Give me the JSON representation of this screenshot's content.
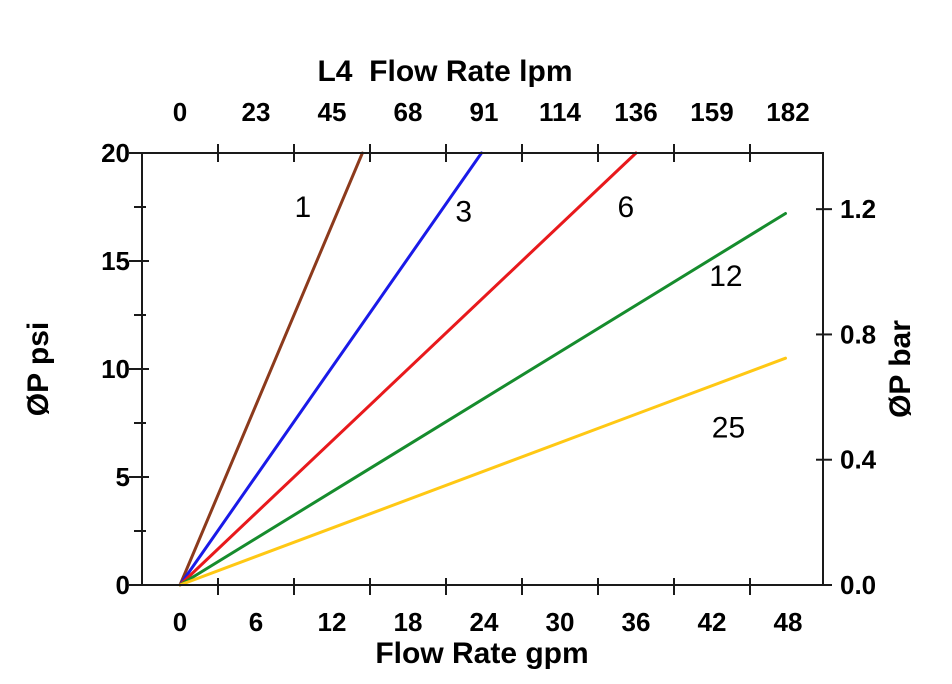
{
  "chart_data": {
    "type": "line",
    "title": "L4  Flow Rate lpm",
    "x_axis": {
      "label": "Flow Rate gpm",
      "unit": "gpm",
      "tick_values": [
        0,
        6,
        12,
        18,
        24,
        30,
        36,
        42,
        48
      ],
      "tick_mark_positions": [
        3,
        9,
        15,
        21,
        27,
        33,
        39,
        45
      ],
      "range": [
        0,
        48
      ]
    },
    "x2_axis": {
      "label": "L4  Flow Rate lpm",
      "unit": "lpm",
      "tick_labels": [
        "0",
        "23",
        "45",
        "68",
        "91",
        "114",
        "136",
        "159",
        "182"
      ],
      "tick_mark_positions": [
        3,
        9,
        15,
        21,
        27,
        33,
        39,
        45
      ]
    },
    "y_axis": {
      "label": "ØP psi",
      "unit": "psi",
      "tick_values": [
        0,
        5,
        10,
        15,
        20
      ],
      "minor_tick_values": [
        2.5,
        7.5,
        12.5,
        17.5
      ],
      "range": [
        0,
        20
      ]
    },
    "y2_axis": {
      "label": "ØP bar",
      "unit": "bar",
      "tick_values": [
        0.0,
        0.4,
        0.8,
        1.2
      ],
      "tick_labels": [
        "0.0",
        "0.4",
        "0.8",
        "1.2"
      ],
      "psi_per_bar": 14.5
    },
    "series": [
      {
        "name": "1",
        "color": "#8C3A1C",
        "points": [
          [
            0,
            0
          ],
          [
            14.4,
            20.0
          ]
        ],
        "label_at": [
          9.7,
          17.5
        ]
      },
      {
        "name": "3",
        "color": "#1A1AE8",
        "points": [
          [
            0,
            0
          ],
          [
            23.8,
            20.0
          ]
        ],
        "label_at": [
          22.4,
          17.3
        ]
      },
      {
        "name": "6",
        "color": "#E8191C",
        "points": [
          [
            0,
            0
          ],
          [
            36.0,
            20.0
          ]
        ],
        "label_at": [
          35.2,
          17.5
        ]
      },
      {
        "name": "12",
        "color": "#168C2D",
        "points": [
          [
            0,
            0
          ],
          [
            47.8,
            17.2
          ]
        ],
        "label_at": [
          43.1,
          14.3
        ]
      },
      {
        "name": "25",
        "color": "#FFC814",
        "points": [
          [
            0,
            0
          ],
          [
            47.8,
            10.5
          ]
        ],
        "label_at": [
          43.3,
          7.3
        ]
      }
    ],
    "legend_position": "none",
    "grid": false,
    "axis_color": "#1a1a1a"
  }
}
